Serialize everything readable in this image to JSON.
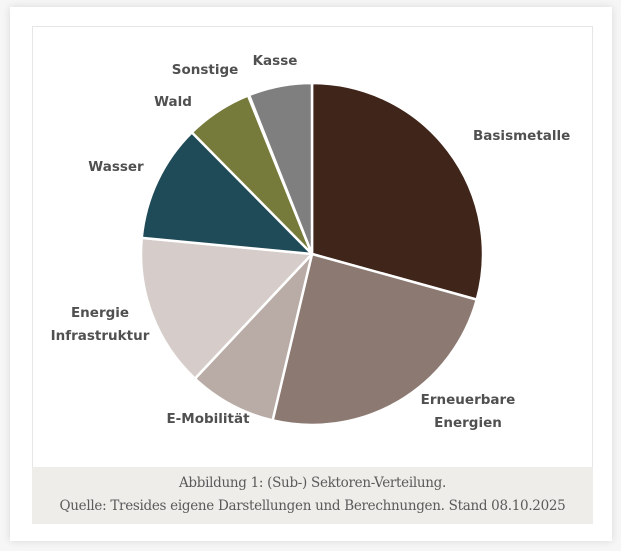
{
  "chart_data": {
    "type": "pie",
    "title": "",
    "start_angle_deg": 0,
    "direction": "clockwise",
    "categories": [
      "Basismetalle",
      "Erneuerbare Energien",
      "E-Mobilität",
      "Energie Infrastruktur",
      "Wasser",
      "Wald",
      "Sonstige",
      "Kasse"
    ],
    "values": [
      29.3,
      24.4,
      8.3,
      14.5,
      11.1,
      6.3,
      0.1,
      6.0
    ],
    "unit": "%",
    "colors": [
      "#40251a",
      "#8c7a72",
      "#b9aca6",
      "#d6cdca",
      "#1f4b58",
      "#767b3c",
      "#767b3c",
      "#7f7f7f"
    ],
    "legend": "none (labels placed outside slices)"
  },
  "labels": {
    "basismetalle": "Basismetalle",
    "erneuerbare_1": "Erneuerbare",
    "erneuerbare_2": "Energien",
    "emobilitaet": "E-Mobilität",
    "energie_1": "Energie",
    "energie_2": "Infrastruktur",
    "wasser": "Wasser",
    "wald": "Wald",
    "sonstige": "Sonstige",
    "kasse": "Kasse"
  },
  "caption": {
    "line1": "Abbildung 1: (Sub-) Sektoren-Verteilung.",
    "line2": "Quelle: Tresides eigene Darstellungen und Berechnungen. Stand 08.10.2025"
  }
}
